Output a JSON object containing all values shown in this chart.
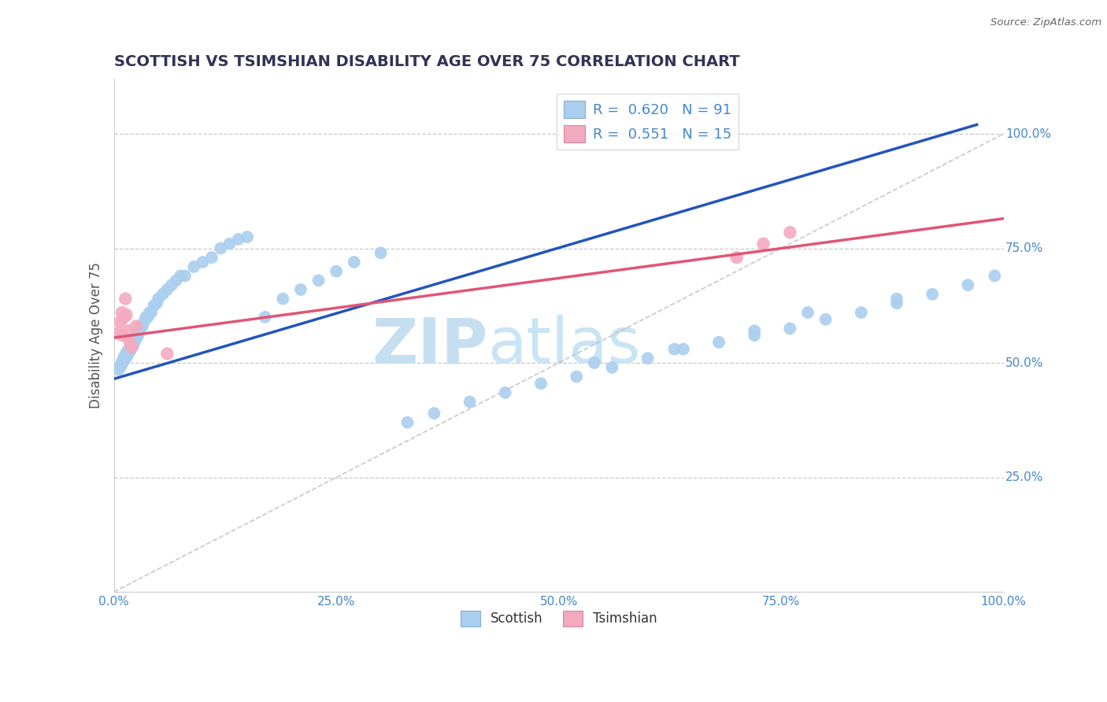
{
  "title": "SCOTTISH VS TSIMSHIAN DISABILITY AGE OVER 75 CORRELATION CHART",
  "source_text": "Source: ZipAtlas.com",
  "ylabel": "Disability Age Over 75",
  "xlim": [
    0.0,
    1.0
  ],
  "ylim": [
    0.0,
    1.12
  ],
  "xticks": [
    0.0,
    0.25,
    0.5,
    0.75,
    1.0
  ],
  "yticks": [
    0.25,
    0.5,
    0.75,
    1.0
  ],
  "xticklabels": [
    "0.0%",
    "25.0%",
    "50.0%",
    "75.0%",
    "100.0%"
  ],
  "yticklabels": [
    "25.0%",
    "50.0%",
    "75.0%",
    "100.0%"
  ],
  "grid_color": "#bbbbbb",
  "background_color": "#ffffff",
  "watermark_zip": "ZIP",
  "watermark_atlas": "atlas",
  "watermark_color": "#c8e4f5",
  "legend_R_scottish": "0.620",
  "legend_N_scottish": "91",
  "legend_R_tsimshian": "0.551",
  "legend_N_tsimshian": "15",
  "scottish_color": "#aacfee",
  "tsimshian_color": "#f4aabe",
  "scottish_line_color": "#2255bb",
  "tsimshian_line_color": "#e05575",
  "ref_line_color": "#bbbbbb",
  "title_color": "#333355",
  "title_fontsize": 14,
  "axis_label_color": "#555555",
  "tick_color": "#4488cc",
  "scottish_x": [
    0.005,
    0.007,
    0.008,
    0.009,
    0.01,
    0.01,
    0.011,
    0.011,
    0.012,
    0.012,
    0.013,
    0.013,
    0.014,
    0.014,
    0.015,
    0.015,
    0.015,
    0.016,
    0.016,
    0.017,
    0.017,
    0.018,
    0.018,
    0.019,
    0.019,
    0.02,
    0.02,
    0.021,
    0.021,
    0.022,
    0.022,
    0.023,
    0.024,
    0.025,
    0.026,
    0.027,
    0.028,
    0.029,
    0.03,
    0.032,
    0.034,
    0.036,
    0.038,
    0.04,
    0.042,
    0.045,
    0.048,
    0.05,
    0.055,
    0.06,
    0.065,
    0.07,
    0.075,
    0.08,
    0.09,
    0.1,
    0.11,
    0.12,
    0.13,
    0.14,
    0.15,
    0.17,
    0.19,
    0.21,
    0.23,
    0.25,
    0.27,
    0.3,
    0.33,
    0.36,
    0.4,
    0.44,
    0.48,
    0.52,
    0.56,
    0.6,
    0.64,
    0.68,
    0.72,
    0.76,
    0.8,
    0.84,
    0.88,
    0.92,
    0.96,
    0.99,
    0.63,
    0.72,
    0.54,
    0.78,
    0.88
  ],
  "scottish_y": [
    0.485,
    0.49,
    0.495,
    0.5,
    0.5,
    0.505,
    0.51,
    0.505,
    0.51,
    0.515,
    0.51,
    0.515,
    0.515,
    0.52,
    0.525,
    0.52,
    0.515,
    0.52,
    0.525,
    0.525,
    0.53,
    0.53,
    0.525,
    0.53,
    0.535,
    0.535,
    0.54,
    0.54,
    0.535,
    0.545,
    0.54,
    0.545,
    0.55,
    0.555,
    0.555,
    0.56,
    0.565,
    0.57,
    0.58,
    0.58,
    0.59,
    0.6,
    0.6,
    0.61,
    0.61,
    0.625,
    0.63,
    0.64,
    0.65,
    0.66,
    0.67,
    0.68,
    0.69,
    0.69,
    0.71,
    0.72,
    0.73,
    0.75,
    0.76,
    0.77,
    0.775,
    0.6,
    0.64,
    0.66,
    0.68,
    0.7,
    0.72,
    0.74,
    0.37,
    0.39,
    0.415,
    0.435,
    0.455,
    0.47,
    0.49,
    0.51,
    0.53,
    0.545,
    0.56,
    0.575,
    0.595,
    0.61,
    0.63,
    0.65,
    0.67,
    0.69,
    0.53,
    0.57,
    0.5,
    0.61,
    0.64
  ],
  "tsimshian_x": [
    0.005,
    0.007,
    0.009,
    0.01,
    0.012,
    0.013,
    0.014,
    0.016,
    0.018,
    0.02,
    0.025,
    0.06,
    0.7,
    0.73,
    0.76
  ],
  "tsimshian_y": [
    0.565,
    0.59,
    0.61,
    0.56,
    0.6,
    0.64,
    0.605,
    0.57,
    0.545,
    0.535,
    0.58,
    0.52,
    0.73,
    0.76,
    0.785
  ],
  "scottish_line_x0": 0.0,
  "scottish_line_y0": 0.465,
  "scottish_line_x1": 0.97,
  "scottish_line_y1": 1.02,
  "tsimshian_line_x0": 0.0,
  "tsimshian_line_y0": 0.555,
  "tsimshian_line_x1": 1.0,
  "tsimshian_line_y1": 0.815
}
